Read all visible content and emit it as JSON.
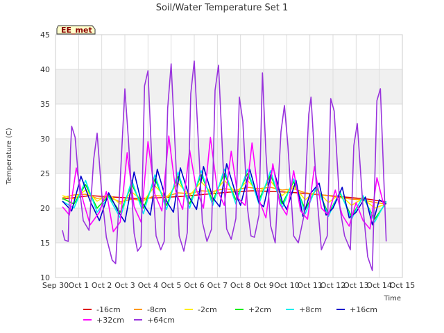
{
  "chart_data": {
    "type": "line",
    "title": "Soil/Water Temperature Set 1",
    "xlabel": "Time",
    "ylabel": "Temperature (C)",
    "ylim": [
      10,
      45
    ],
    "xlim": [
      0,
      15
    ],
    "y_ticks": [
      10,
      15,
      20,
      25,
      30,
      35,
      40,
      45
    ],
    "x_ticks": [
      {
        "v": 0,
        "label": "Sep 30"
      },
      {
        "v": 1,
        "label": "Oct 1"
      },
      {
        "v": 2,
        "label": "Oct 2"
      },
      {
        "v": 3,
        "label": "Oct 3"
      },
      {
        "v": 4,
        "label": "Oct 4"
      },
      {
        "v": 5,
        "label": "Oct 5"
      },
      {
        "v": 6,
        "label": "Oct 6"
      },
      {
        "v": 7,
        "label": "Oct 7"
      },
      {
        "v": 8,
        "label": "Oct 8"
      },
      {
        "v": 9,
        "label": "Oct 9"
      },
      {
        "v": 10,
        "label": "Oct 10"
      },
      {
        "v": 11,
        "label": "Oct 11"
      },
      {
        "v": 12,
        "label": "Oct 12"
      },
      {
        "v": 13,
        "label": "Oct 13"
      },
      {
        "v": 14,
        "label": "Oct 14"
      },
      {
        "v": 15,
        "label": "Oct 15"
      }
    ],
    "grid": true,
    "background_bands": true,
    "station_label": "EE_met",
    "legend_position": "bottom",
    "series": [
      {
        "name": "-16cm",
        "color": "#dd0000",
        "x": [
          0.3,
          1.5,
          2.5,
          3.5,
          4.5,
          5.5,
          6.5,
          7.5,
          8.5,
          9.5,
          10.5,
          11.5,
          12.5,
          13.5,
          14.3
        ],
        "y": [
          21.3,
          21.8,
          21.6,
          21.4,
          21.5,
          21.7,
          22.0,
          22.3,
          22.5,
          22.4,
          22.2,
          21.9,
          21.6,
          21.3,
          20.9
        ]
      },
      {
        "name": "-8cm",
        "color": "#ff9900",
        "x": [
          0.3,
          0.8,
          1.3,
          1.8,
          2.3,
          2.8,
          3.3,
          3.8,
          4.3,
          4.8,
          5.3,
          5.8,
          6.3,
          6.8,
          7.3,
          7.8,
          8.3,
          8.8,
          9.3,
          9.8,
          10.3,
          10.8,
          11.3,
          11.8,
          12.3,
          12.8,
          13.3,
          13.8,
          14.3
        ],
        "y": [
          21.5,
          21.9,
          22.0,
          21.4,
          21.6,
          20.9,
          21.3,
          21.1,
          21.8,
          21.7,
          22.2,
          22.1,
          22.5,
          22.4,
          22.8,
          22.6,
          23.0,
          22.8,
          23.0,
          22.6,
          22.8,
          22.2,
          22.0,
          21.8,
          21.5,
          21.3,
          21.2,
          20.8,
          20.6
        ]
      },
      {
        "name": "-2cm",
        "color": "#ffee00",
        "x": [
          0.3,
          0.8,
          1.3,
          1.8,
          2.3,
          2.8,
          3.3,
          3.8,
          4.3,
          4.8,
          5.3,
          5.8,
          6.3,
          6.8,
          7.3,
          7.8,
          8.3,
          8.8,
          9.3,
          9.8,
          10.3,
          10.8,
          11.3,
          11.8,
          12.3,
          12.8,
          13.3,
          13.8,
          14.3
        ],
        "y": [
          21.8,
          21.3,
          22.6,
          21.0,
          22.0,
          20.6,
          22.3,
          21.0,
          23.2,
          21.5,
          23.6,
          21.8,
          23.8,
          22.0,
          24.0,
          22.2,
          24.0,
          22.2,
          23.9,
          21.8,
          23.2,
          21.2,
          22.6,
          20.8,
          22.0,
          20.4,
          21.4,
          20.0,
          20.6
        ]
      },
      {
        "name": "+2cm",
        "color": "#00ee00",
        "x": [
          0.3,
          0.8,
          1.3,
          1.8,
          2.3,
          2.8,
          3.3,
          3.8,
          4.3,
          4.8,
          5.3,
          5.8,
          6.3,
          6.8,
          7.3,
          7.8,
          8.3,
          8.8,
          9.3,
          9.8,
          10.3,
          10.8,
          11.3,
          11.8,
          12.3,
          12.8,
          13.3,
          13.8,
          14.3
        ],
        "y": [
          21.4,
          20.6,
          23.4,
          20.0,
          21.8,
          19.4,
          23.4,
          20.0,
          24.2,
          20.4,
          24.6,
          20.6,
          24.8,
          21.0,
          25.0,
          21.2,
          25.0,
          21.2,
          24.8,
          20.6,
          23.8,
          19.8,
          23.0,
          19.2,
          22.2,
          18.8,
          21.6,
          18.4,
          20.8
        ]
      },
      {
        "name": "+8cm",
        "color": "#00eeee",
        "x": [
          0.3,
          0.8,
          1.3,
          1.8,
          2.3,
          2.8,
          3.3,
          3.8,
          4.3,
          4.8,
          5.3,
          5.8,
          6.3,
          6.8,
          7.3,
          7.8,
          8.3,
          8.8,
          9.3,
          9.8,
          10.3,
          10.8,
          11.3,
          11.8,
          12.3,
          12.8,
          13.3,
          13.8,
          14.3
        ],
        "y": [
          21.0,
          20.0,
          24.0,
          19.4,
          21.6,
          18.6,
          24.0,
          19.2,
          24.8,
          19.8,
          25.2,
          20.0,
          25.4,
          20.4,
          25.6,
          20.6,
          25.6,
          20.6,
          25.4,
          20.0,
          24.2,
          19.2,
          23.2,
          18.8,
          22.4,
          18.4,
          21.8,
          18.0,
          21.0
        ]
      },
      {
        "name": "+16cm",
        "color": "#0000cc",
        "x": [
          0.3,
          0.7,
          1.1,
          1.5,
          1.9,
          2.3,
          2.7,
          3.0,
          3.4,
          3.7,
          4.1,
          4.4,
          4.8,
          5.1,
          5.4,
          5.8,
          6.1,
          6.4,
          6.8,
          7.1,
          7.4,
          7.8,
          8.0,
          8.4,
          8.8,
          9.0,
          9.4,
          9.8,
          10.0,
          10.4,
          10.7,
          11.0,
          11.4,
          11.7,
          12.0,
          12.4,
          12.7,
          13.0,
          13.4,
          13.7,
          14.0,
          14.3
        ],
        "y": [
          21.0,
          19.6,
          24.6,
          21.0,
          18.2,
          22.2,
          19.6,
          18.0,
          25.2,
          21.0,
          19.0,
          25.6,
          21.0,
          19.4,
          25.8,
          21.5,
          19.8,
          26.0,
          21.5,
          20.2,
          26.4,
          22.0,
          20.4,
          25.6,
          20.8,
          20.2,
          26.0,
          21.0,
          19.8,
          24.0,
          18.8,
          22.0,
          23.6,
          19.0,
          20.0,
          23.0,
          18.6,
          19.4,
          21.6,
          17.6,
          21.2,
          20.6
        ]
      },
      {
        "name": "+32cm",
        "color": "#ff00ff",
        "x": [
          0.3,
          0.6,
          0.9,
          1.2,
          1.5,
          1.9,
          2.2,
          2.5,
          2.8,
          3.1,
          3.4,
          3.7,
          4.0,
          4.3,
          4.6,
          4.9,
          5.2,
          5.5,
          5.8,
          6.1,
          6.4,
          6.7,
          7.0,
          7.3,
          7.6,
          7.9,
          8.2,
          8.5,
          8.8,
          9.1,
          9.4,
          9.7,
          10.0,
          10.3,
          10.6,
          10.9,
          11.2,
          11.5,
          11.8,
          12.1,
          12.4,
          12.7,
          13.0,
          13.3,
          13.6,
          13.9,
          14.2
        ],
        "y": [
          20.2,
          19.0,
          25.8,
          21.0,
          17.6,
          19.4,
          22.4,
          16.6,
          18.0,
          28.0,
          20.2,
          18.0,
          29.6,
          22.0,
          19.6,
          30.4,
          22.4,
          19.8,
          28.4,
          22.6,
          20.0,
          30.2,
          22.6,
          20.4,
          28.2,
          21.4,
          20.4,
          29.4,
          21.2,
          18.6,
          26.4,
          20.6,
          19.0,
          25.4,
          19.6,
          18.4,
          26.0,
          20.0,
          19.0,
          22.6,
          19.0,
          17.4,
          20.8,
          18.2,
          17.0,
          24.4,
          20.4
        ]
      },
      {
        "name": "+64cm",
        "color": "#9933dd",
        "x": [
          0.3,
          0.4,
          0.55,
          0.65,
          0.7,
          0.85,
          1.0,
          1.2,
          1.45,
          1.65,
          1.8,
          2.0,
          2.2,
          2.45,
          2.6,
          2.8,
          3.0,
          3.15,
          3.4,
          3.55,
          3.7,
          3.85,
          4.0,
          4.2,
          4.35,
          4.55,
          4.7,
          4.85,
          5.0,
          5.2,
          5.35,
          5.55,
          5.7,
          5.85,
          6.0,
          6.2,
          6.35,
          6.55,
          6.75,
          6.9,
          7.05,
          7.25,
          7.4,
          7.6,
          7.8,
          7.95,
          8.1,
          8.3,
          8.45,
          8.6,
          8.8,
          8.95,
          9.1,
          9.3,
          9.5,
          9.75,
          9.9,
          10.05,
          10.3,
          10.5,
          10.75,
          10.95,
          11.05,
          11.3,
          11.5,
          11.75,
          11.9,
          12.05,
          12.3,
          12.5,
          12.75,
          12.9,
          13.05,
          13.3,
          13.5,
          13.7,
          13.9,
          14.05,
          14.3
        ],
        "y": [
          16.8,
          15.4,
          15.2,
          28.5,
          31.8,
          30.2,
          24.0,
          18.2,
          16.8,
          27.0,
          30.8,
          22.0,
          15.8,
          12.5,
          12.0,
          24.0,
          37.2,
          30.0,
          16.4,
          13.8,
          14.5,
          37.6,
          39.8,
          24.0,
          16.0,
          14.0,
          15.2,
          34.4,
          40.8,
          27.0,
          16.0,
          13.8,
          16.5,
          36.5,
          41.2,
          28.0,
          18.0,
          15.2,
          17.0,
          37.0,
          40.6,
          26.0,
          17.0,
          15.5,
          18.5,
          36.0,
          32.5,
          20.0,
          16.0,
          15.8,
          19.0,
          39.5,
          28.0,
          17.5,
          15.0,
          31.0,
          34.8,
          29.0,
          16.0,
          15.0,
          19.0,
          33.5,
          36.0,
          22.0,
          14.0,
          16.0,
          35.8,
          34.0,
          20.0,
          16.0,
          14.0,
          29.0,
          32.2,
          20.0,
          13.0,
          11.0,
          35.5,
          37.2,
          15.2
        ]
      }
    ]
  }
}
